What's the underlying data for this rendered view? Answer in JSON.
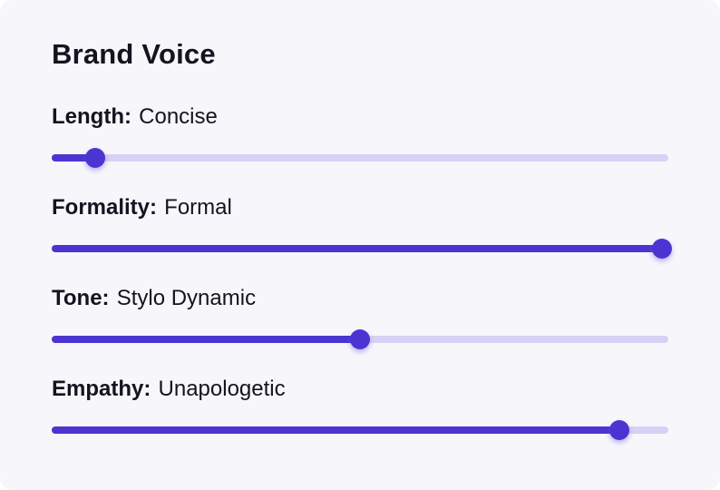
{
  "card": {
    "title": "Brand Voice"
  },
  "colors": {
    "accent": "#4b35d2",
    "track": "#d9d0f5",
    "text": "#16121f",
    "card_bg": "#f7f7fb",
    "page_bg": "#ffffff"
  },
  "sliders": [
    {
      "label": "Length:",
      "value": "Concise",
      "percent": 7
    },
    {
      "label": "Formality:",
      "value": "Formal",
      "percent": 99
    },
    {
      "label": "Tone:",
      "value": "Stylo Dynamic",
      "percent": 50
    },
    {
      "label": "Empathy:",
      "value": "Unapologetic",
      "percent": 92
    }
  ]
}
